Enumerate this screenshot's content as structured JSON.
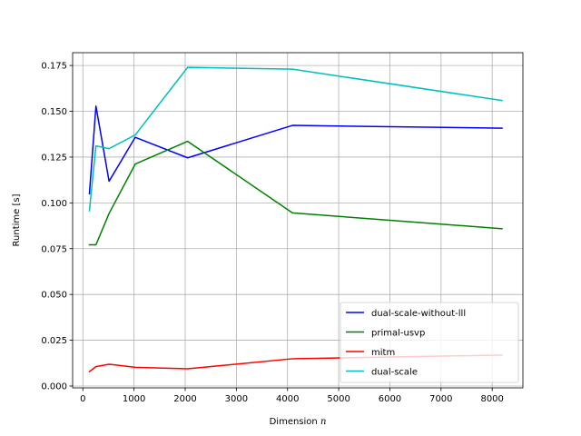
{
  "chart_data": {
    "type": "line",
    "xlabel": "Dimension",
    "xlabel_var": "n",
    "ylabel": "Runtime [s]",
    "xlim": [
      -200,
      8600
    ],
    "ylim": [
      -0.001,
      0.182
    ],
    "x_ticks": [
      0,
      1000,
      2000,
      3000,
      4000,
      5000,
      6000,
      7000,
      8000
    ],
    "y_ticks": [
      0.0,
      0.025,
      0.05,
      0.075,
      0.1,
      0.125,
      0.15,
      0.175
    ],
    "x_tick_labels": [
      "0",
      "1000",
      "2000",
      "3000",
      "4000",
      "5000",
      "6000",
      "7000",
      "8000"
    ],
    "y_tick_labels": [
      "0.000",
      "0.025",
      "0.050",
      "0.075",
      "0.100",
      "0.125",
      "0.150",
      "0.175"
    ],
    "grid": true,
    "legend_position": "lower-right",
    "x": [
      128,
      256,
      512,
      1024,
      2048,
      4096,
      8192
    ],
    "series": [
      {
        "name": "dual-scale-without-lll",
        "color": "#0000ff",
        "values": [
          0.105,
          0.1528,
          0.1118,
          0.1358,
          0.1246,
          0.1423,
          0.1408
        ]
      },
      {
        "name": "primal-usvp",
        "color": "#008000",
        "values": [
          0.0771,
          0.0771,
          0.0942,
          0.1212,
          0.1336,
          0.0945,
          0.0859
        ]
      },
      {
        "name": "mitm",
        "color": "#ff0000",
        "values": [
          0.0079,
          0.0106,
          0.0119,
          0.0102,
          0.0094,
          0.0149,
          0.0169
        ]
      },
      {
        "name": "dual-scale",
        "color": "#00bfbf",
        "values": [
          0.0957,
          0.1311,
          0.1296,
          0.1371,
          0.174,
          0.173,
          0.1559
        ]
      }
    ]
  }
}
